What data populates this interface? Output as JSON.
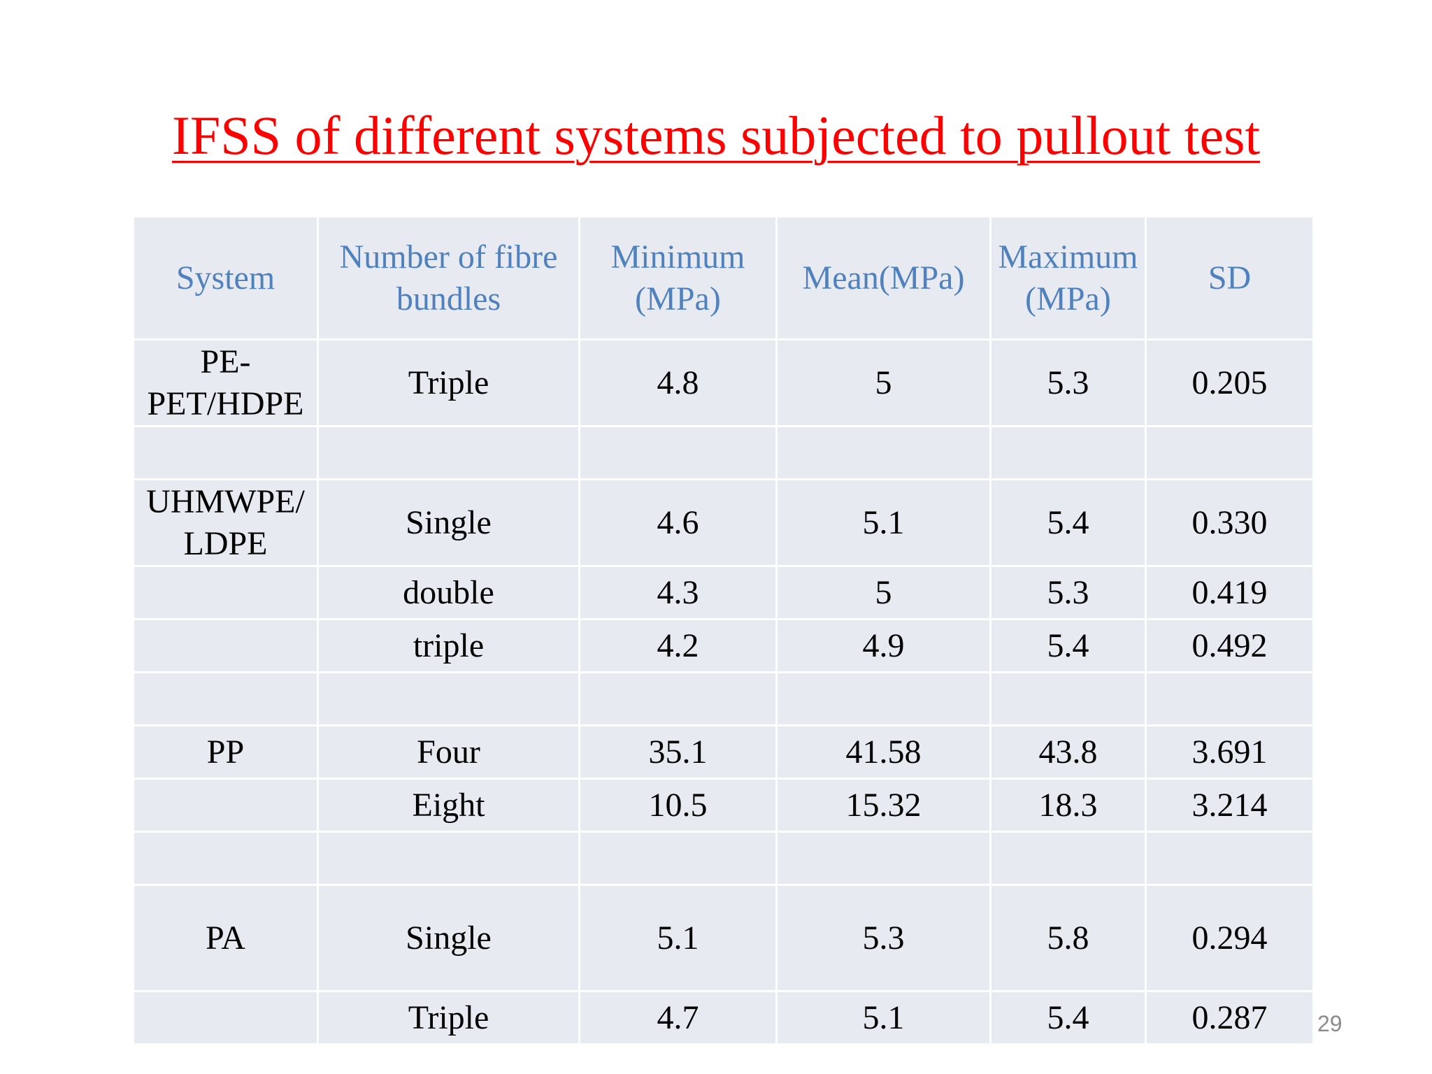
{
  "title": "IFSS of different systems subjected to pullout test",
  "table": {
    "headers": [
      "System",
      "Number of fibre bundles",
      "Minimum (MPa)",
      "Mean(MPa)",
      "Maximum (MPa)",
      "SD"
    ],
    "rows": [
      [
        "PE-PET/HDPE",
        "Triple",
        "4.8",
        "5",
        "5.3",
        "0.205"
      ],
      [
        "",
        "",
        "",
        "",
        "",
        ""
      ],
      [
        "UHMWPE/ LDPE",
        "Single",
        "4.6",
        "5.1",
        "5.4",
        "0.330"
      ],
      [
        "",
        "double",
        "4.3",
        "5",
        "5.3",
        "0.419"
      ],
      [
        "",
        "triple",
        "4.2",
        "4.9",
        "5.4",
        "0.492"
      ],
      [
        "",
        "",
        "",
        "",
        "",
        ""
      ],
      [
        "PP",
        "Four",
        "35.1",
        "41.58",
        "43.8",
        "3.691"
      ],
      [
        "",
        "Eight",
        "10.5",
        "15.32",
        "18.3",
        "3.214"
      ],
      [
        "",
        "",
        "",
        "",
        "",
        ""
      ],
      [
        "PA",
        "Single",
        "5.1",
        "5.3",
        "5.8",
        "0.294"
      ],
      [
        "",
        "Triple",
        "4.7",
        "5.1",
        "5.4",
        "0.287"
      ]
    ]
  },
  "page_number": "29",
  "colors": {
    "title": "#ff0000",
    "header_text": "#4f81bd",
    "cell_background": "#e8eaf1",
    "page_number": "#8c8c8c"
  }
}
